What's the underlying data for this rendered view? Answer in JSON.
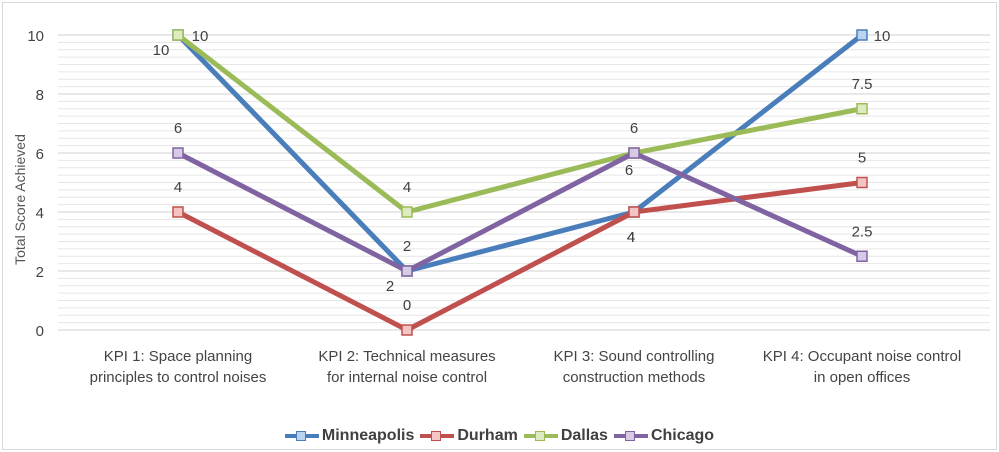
{
  "chart_data": {
    "type": "line",
    "title": "",
    "xlabel": "",
    "ylabel": "Total Score Achieved",
    "ylim": [
      0,
      10
    ],
    "yticks": [
      0,
      2,
      4,
      6,
      8,
      10
    ],
    "grid": "minor horizontal gridlines",
    "legend_position": "bottom",
    "categories": [
      [
        "KPI 1: Space planning",
        "principles to control noises"
      ],
      [
        "KPI 2: Technical measures",
        "for internal noise control"
      ],
      [
        "KPI 3: Sound controlling",
        "construction methods"
      ],
      [
        "KPI 4: Occupant noise control",
        "in open offices"
      ]
    ],
    "series": [
      {
        "name": "Minneapolis",
        "values": [
          10,
          2,
          4,
          10
        ],
        "labels": [
          "10",
          "2",
          "4",
          "10"
        ],
        "color": "#4a7ebb",
        "marker_fill": "#b9d2ee"
      },
      {
        "name": "Durham",
        "values": [
          4,
          0,
          4,
          5
        ],
        "labels": [
          "4",
          "0",
          "4",
          "5"
        ],
        "color": "#c0504d",
        "marker_fill": "#f2c4c3"
      },
      {
        "name": "Dallas",
        "values": [
          10,
          4,
          6,
          7.5
        ],
        "labels": [
          "10",
          "4",
          "6",
          "7.5"
        ],
        "color": "#9bbb59",
        "marker_fill": "#dcecc0"
      },
      {
        "name": "Chicago",
        "values": [
          6,
          2,
          6,
          2.5
        ],
        "labels": [
          "6",
          "2",
          "6",
          "2.5"
        ],
        "color": "#8064a2",
        "marker_fill": "#d6cae6"
      }
    ]
  }
}
